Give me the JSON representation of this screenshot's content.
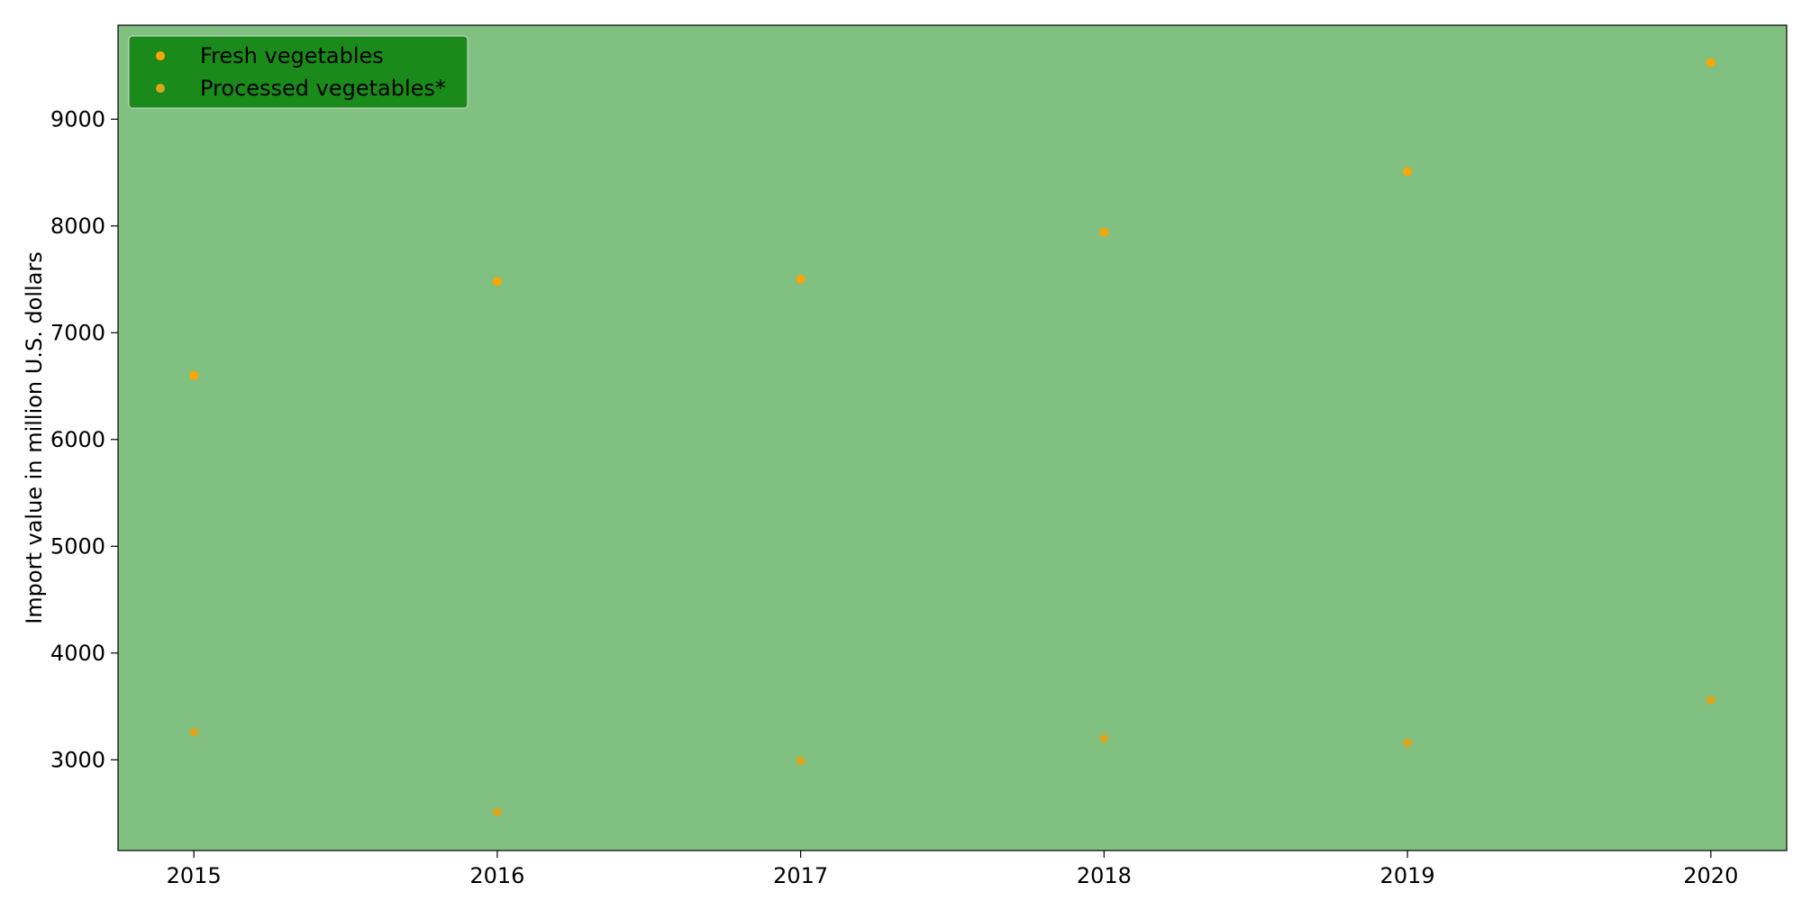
{
  "chart_data": {
    "type": "scatter",
    "title": "",
    "xlabel": "",
    "ylabel": "Import value in million U.S. dollars",
    "x": [
      2015,
      2016,
      2017,
      2018,
      2019,
      2020
    ],
    "xlim": [
      2014.75,
      2020.25
    ],
    "ylim": [
      2150,
      9880
    ],
    "xticks": [
      2015,
      2016,
      2017,
      2018,
      2019,
      2020
    ],
    "yticks": [
      3000,
      4000,
      5000,
      6000,
      7000,
      8000,
      9000
    ],
    "grid": false,
    "legend_position": "top-left",
    "series": [
      {
        "name": "Fresh vegetables",
        "values": [
          6600,
          7480,
          7500,
          7940,
          8510,
          9530
        ]
      },
      {
        "name": "Processed vegetables*",
        "values": [
          3260,
          2510,
          2990,
          3200,
          3160,
          3560
        ]
      }
    ]
  },
  "colors": {
    "plot_background": "#80c080",
    "marker_fresh": "#ffa500",
    "marker_processed": "#daa520",
    "legend_background": "#1a8a1a"
  }
}
